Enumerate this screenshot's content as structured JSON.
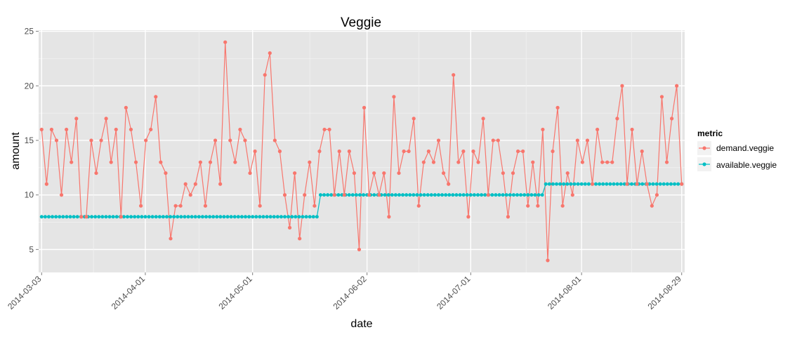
{
  "chart_data": {
    "type": "line",
    "title": "Veggie",
    "xlabel": "date",
    "ylabel": "amount",
    "x_axis": {
      "type": "date",
      "range": [
        "2014-03-03",
        "2014-08-29"
      ],
      "tick_labels": [
        "2014-03-03",
        "2014-04-01",
        "2014-05-01",
        "2014-06-02",
        "2014-07-01",
        "2014-08-01",
        "2014-08-29"
      ]
    },
    "y_axis": {
      "range": [
        2.9,
        25.1
      ],
      "ticks": [
        5,
        10,
        15,
        20,
        25
      ],
      "tick_labels": [
        "5",
        "10",
        "15",
        "20",
        "25"
      ]
    },
    "grid": true,
    "background": "#e5e5e5",
    "legend": {
      "title": "metric",
      "placement": "right",
      "items": [
        "demand.veggie",
        "available.veggie"
      ]
    },
    "x_start": "2014-03-03",
    "x_end": "2014-08-29",
    "series": [
      {
        "name": "demand.veggie",
        "color": "#f8766d",
        "values": [
          16,
          11,
          16,
          15,
          10,
          16,
          13,
          17,
          8,
          8,
          15,
          12,
          15,
          17,
          13,
          16,
          8,
          18,
          16,
          13,
          9,
          15,
          16,
          19,
          13,
          12,
          6,
          9,
          9,
          11,
          10,
          11,
          13,
          9,
          13,
          15,
          11,
          24,
          15,
          13,
          16,
          15,
          12,
          14,
          9,
          21,
          23,
          15,
          14,
          10,
          7,
          12,
          6,
          10,
          13,
          9,
          14,
          16,
          16,
          10,
          14,
          10,
          14,
          12,
          5,
          18,
          10,
          12,
          10,
          12,
          8,
          19,
          12,
          14,
          14,
          17,
          9,
          13,
          14,
          13,
          15,
          12,
          11,
          21,
          13,
          14,
          8,
          14,
          13,
          17,
          10,
          15,
          15,
          12,
          8,
          12,
          14,
          14,
          9,
          13,
          9,
          16,
          4,
          14,
          18,
          9,
          12,
          10,
          15,
          13,
          15,
          11,
          16,
          13,
          13,
          13,
          17,
          20,
          11,
          16,
          11,
          14,
          11,
          9,
          10,
          19,
          13,
          17,
          20,
          11
        ]
      },
      {
        "name": "available.veggie",
        "color": "#00bfc4",
        "segments": [
          {
            "from": "2014-03-03",
            "to": "2014-05-19",
            "value": 8
          },
          {
            "from": "2014-05-20",
            "to": "2014-07-21",
            "value": 10
          },
          {
            "from": "2014-07-22",
            "to": "2014-08-29",
            "value": 11
          }
        ]
      }
    ]
  }
}
